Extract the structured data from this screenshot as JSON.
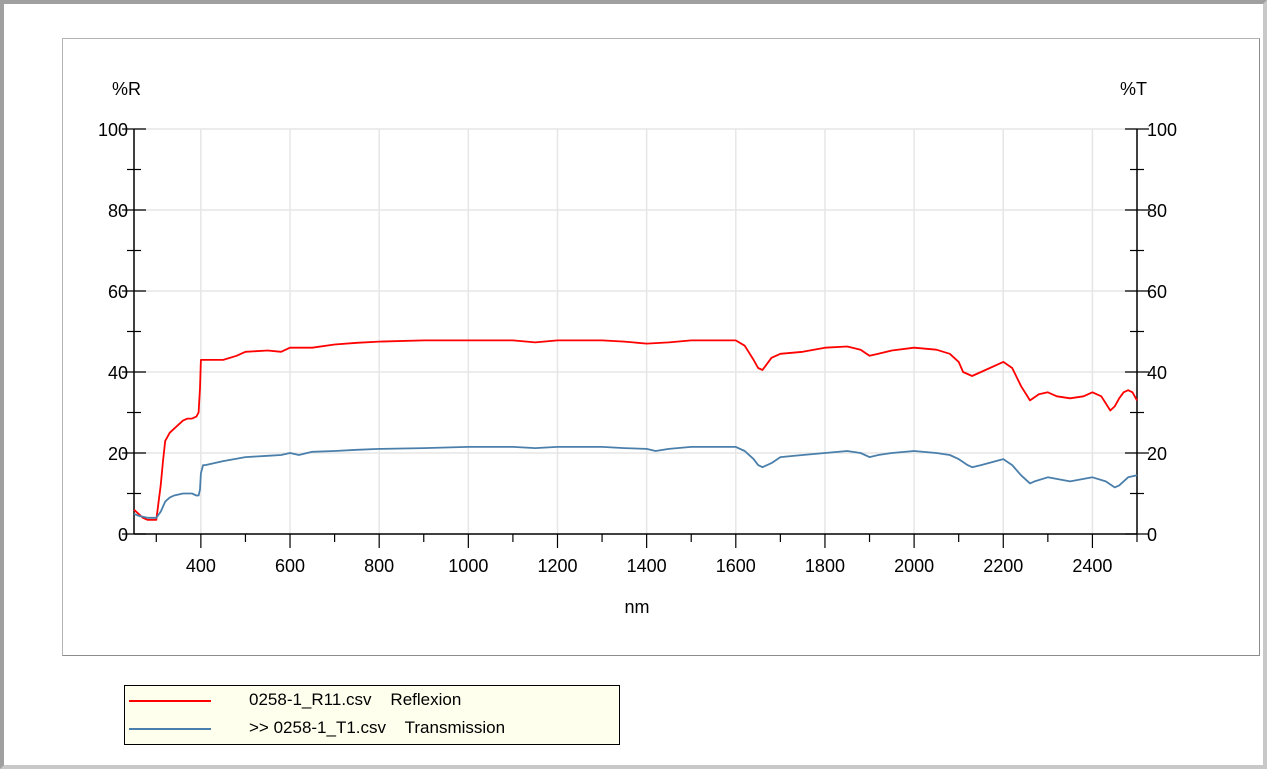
{
  "chart_data": {
    "type": "line",
    "xlabel": "nm",
    "ylabel_left": "%R",
    "ylabel_right": "%T",
    "xlim": [
      250,
      2500
    ],
    "ylim": [
      0,
      100
    ],
    "x_ticks": [
      "400",
      "600",
      "800",
      "1000",
      "1200",
      "1400",
      "1600",
      "1800",
      "2000",
      "2200",
      "2400"
    ],
    "y_ticks_left": [
      "0",
      "20",
      "40",
      "60",
      "80",
      "100"
    ],
    "y_ticks_right": [
      "0",
      "20",
      "40",
      "60",
      "80",
      "100"
    ],
    "grid": true,
    "legend_position": "bottom-left",
    "series": [
      {
        "name": "0258-1_R11.csv    Reflexion",
        "axis": "left",
        "color": "#ff0000",
        "x": [
          250,
          260,
          270,
          280,
          290,
          300,
          310,
          315,
          320,
          330,
          340,
          350,
          360,
          370,
          380,
          390,
          395,
          398,
          400,
          410,
          420,
          450,
          480,
          500,
          550,
          580,
          600,
          650,
          700,
          750,
          800,
          900,
          1000,
          1100,
          1150,
          1200,
          1300,
          1350,
          1400,
          1450,
          1500,
          1600,
          1620,
          1640,
          1650,
          1660,
          1680,
          1700,
          1750,
          1800,
          1850,
          1880,
          1900,
          1920,
          1950,
          2000,
          2050,
          2080,
          2100,
          2110,
          2130,
          2150,
          2200,
          2220,
          2240,
          2260,
          2280,
          2300,
          2320,
          2350,
          2380,
          2400,
          2420,
          2440,
          2450,
          2460,
          2470,
          2480,
          2490,
          2500
        ],
        "y": [
          6,
          5,
          4,
          3.5,
          3.5,
          3.5,
          12,
          18,
          23,
          25,
          26,
          27,
          28,
          28.5,
          28.5,
          29,
          30,
          36,
          43,
          43,
          43,
          43,
          44,
          45,
          45.3,
          45,
          46,
          46,
          46.8,
          47.2,
          47.5,
          47.8,
          47.8,
          47.8,
          47.3,
          47.8,
          47.8,
          47.5,
          47,
          47.3,
          47.8,
          47.8,
          46.5,
          43,
          41,
          40.5,
          43.5,
          44.5,
          45,
          46,
          46.3,
          45.5,
          44,
          44.5,
          45.3,
          46,
          45.5,
          44.5,
          42.5,
          40,
          39,
          40,
          42.5,
          41,
          36.5,
          33,
          34.5,
          35,
          34,
          33.5,
          34,
          35,
          34,
          30.5,
          31.5,
          33.5,
          35,
          35.5,
          35,
          33
        ]
      },
      {
        "name": ">> 0258-1_T1.csv    Transmission",
        "axis": "right",
        "color": "#4a7fab",
        "x": [
          250,
          260,
          280,
          300,
          310,
          320,
          330,
          340,
          360,
          380,
          390,
          395,
          398,
          400,
          405,
          410,
          450,
          500,
          550,
          580,
          600,
          620,
          650,
          700,
          750,
          800,
          900,
          1000,
          1100,
          1150,
          1200,
          1300,
          1350,
          1400,
          1420,
          1450,
          1500,
          1600,
          1620,
          1640,
          1650,
          1660,
          1680,
          1700,
          1750,
          1800,
          1850,
          1880,
          1900,
          1920,
          1950,
          2000,
          2050,
          2080,
          2100,
          2120,
          2130,
          2150,
          2200,
          2220,
          2240,
          2260,
          2270,
          2300,
          2350,
          2400,
          2430,
          2450,
          2460,
          2480,
          2500
        ],
        "y": [
          5,
          4.5,
          4,
          4,
          5.5,
          8,
          9,
          9.5,
          10,
          10,
          9.5,
          9.5,
          11,
          15,
          17,
          17,
          18,
          19,
          19.3,
          19.5,
          20,
          19.5,
          20.3,
          20.5,
          20.8,
          21,
          21.2,
          21.5,
          21.5,
          21.2,
          21.5,
          21.5,
          21.2,
          21,
          20.5,
          21,
          21.5,
          21.5,
          20.5,
          18.5,
          17,
          16.5,
          17.5,
          19,
          19.5,
          20,
          20.5,
          20,
          19,
          19.5,
          20,
          20.5,
          20,
          19.5,
          18.5,
          17,
          16.5,
          17,
          18.5,
          17,
          14.5,
          12.5,
          13,
          14,
          13,
          14,
          13,
          11.5,
          12,
          14,
          14.5
        ]
      }
    ]
  },
  "legend": {
    "items": [
      {
        "label": "0258-1_R11.csv    Reflexion",
        "color": "#ff0000"
      },
      {
        "label": ">> 0258-1_T1.csv    Transmission",
        "color": "#4a7fab"
      }
    ]
  }
}
